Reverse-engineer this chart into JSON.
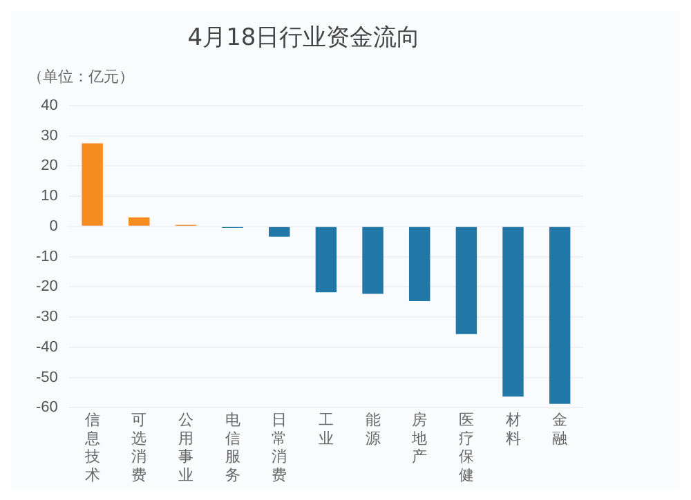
{
  "chart_data": {
    "type": "bar",
    "title": "4月18日行业资金流向",
    "ylabel": "（单位：亿元）",
    "categories": [
      "信息技术",
      "可选消费",
      "公用事业",
      "电信服务",
      "日常消费",
      "工业",
      "能源",
      "房地产",
      "医疗保健",
      "材料",
      "金融"
    ],
    "values": [
      27.5,
      3,
      0.5,
      -0.5,
      -3.4,
      -21.8,
      -22.3,
      -24.7,
      -35.6,
      -56.3,
      -58.7
    ],
    "colors": [
      "#f68b1f",
      "#f68b1f",
      "#f68b1f",
      "#2178a6",
      "#2178a6",
      "#2178a6",
      "#2178a6",
      "#2178a6",
      "#2178a6",
      "#2178a6",
      "#2178a6"
    ],
    "ylim": [
      -60,
      40
    ],
    "yticks": [
      -60,
      -50,
      -40,
      -30,
      -20,
      -10,
      0,
      10,
      20,
      30,
      40
    ],
    "grid": "y",
    "legend": false
  }
}
